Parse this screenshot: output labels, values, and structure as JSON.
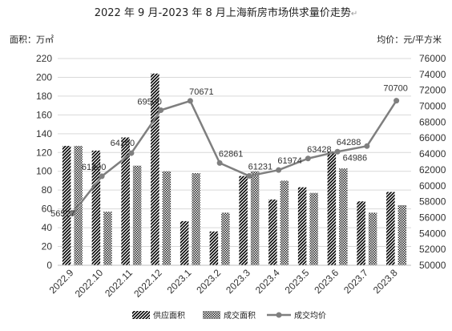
{
  "chart_data": {
    "type": "bar",
    "title": "2022 年 9 月-2023 年 8 月上海新房市场供求量价走势",
    "title_mark": "↵",
    "ylabel": "面积：万㎡",
    "y2label": "均价：元/平方米",
    "categories": [
      "2022.9",
      "2022.10",
      "2022.11",
      "2022.12",
      "2023.1",
      "2023.2",
      "2023.3",
      "2023.4",
      "2023.5",
      "2023.6",
      "2023.7",
      "2023.8"
    ],
    "ylim": [
      0,
      220
    ],
    "y_ticks": [
      0,
      20,
      40,
      60,
      80,
      100,
      120,
      140,
      160,
      180,
      200,
      220
    ],
    "y2lim": [
      50000,
      76000
    ],
    "y2_ticks": [
      50000,
      52000,
      54000,
      56000,
      58000,
      60000,
      62000,
      64000,
      66000,
      68000,
      70000,
      72000,
      74000,
      76000
    ],
    "grid": true,
    "legend_position": "bottom",
    "series": [
      {
        "name": "供应面积",
        "kind": "bar",
        "pattern": "diagonal",
        "values": [
          127,
          122,
          136,
          204,
          47,
          36,
          95,
          70,
          83,
          121,
          68,
          78
        ]
      },
      {
        "name": "成交面积",
        "kind": "bar",
        "pattern": "dense",
        "values": [
          127,
          57,
          106,
          100,
          98,
          56,
          100,
          90,
          77,
          103,
          56,
          64
        ]
      },
      {
        "name": "成交均价",
        "kind": "line",
        "axis": "right",
        "color": "#7f7f7f",
        "values": [
          56527,
          61200,
          64100,
          69500,
          70671,
          62861,
          61231,
          61974,
          63428,
          64288,
          64986,
          70700
        ]
      }
    ],
    "data_labels": [
      "56527",
      "61200",
      "64100",
      "69500",
      "70671",
      "62861",
      "61231",
      "61974",
      "63428",
      "64288",
      "64986",
      "70700"
    ]
  }
}
